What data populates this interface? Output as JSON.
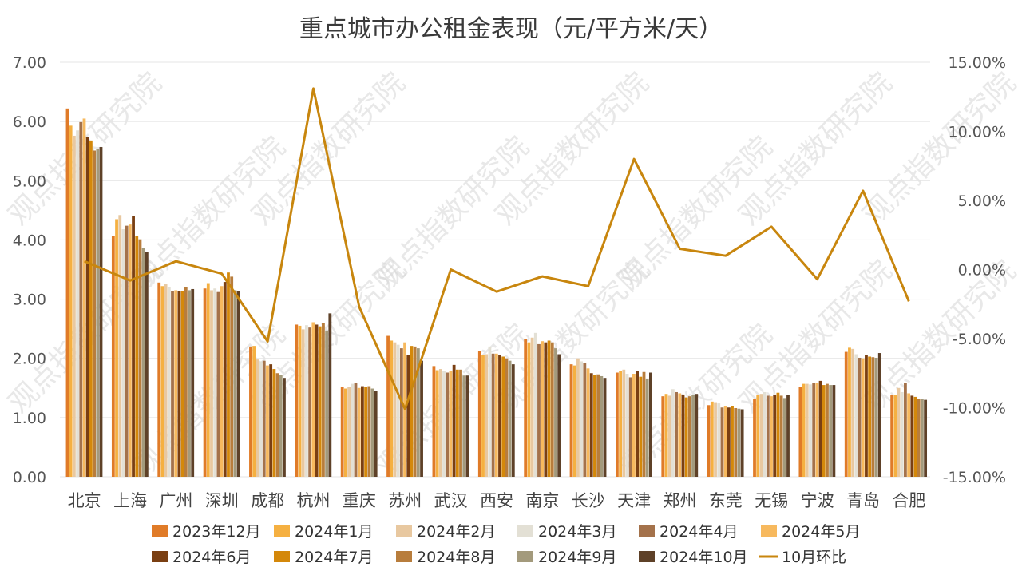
{
  "chart_data": {
    "type": "bar",
    "title": "重点城市办公租金表现（元/平方米/天）",
    "categories": [
      "北京",
      "上海",
      "广州",
      "深圳",
      "成都",
      "杭州",
      "重庆",
      "苏州",
      "武汉",
      "西安",
      "南京",
      "长沙",
      "天津",
      "郑州",
      "东莞",
      "无锡",
      "宁波",
      "青岛",
      "合肥"
    ],
    "y_left": {
      "ylim": [
        0,
        7
      ],
      "ticks": [
        "0.00",
        "1.00",
        "2.00",
        "3.00",
        "4.00",
        "5.00",
        "6.00",
        "7.00"
      ]
    },
    "y_right": {
      "ylim": [
        -15,
        15
      ],
      "ticks": [
        "-15.00%",
        "-10.00%",
        "-5.00%",
        "0.00%",
        "5.00%",
        "10.00%",
        "15.00%"
      ]
    },
    "legend_position": "bottom",
    "grid": true,
    "series": [
      {
        "name": "2023年12月",
        "color": "#e07b28",
        "values": [
          6.22,
          4.06,
          3.28,
          3.18,
          2.2,
          2.57,
          1.52,
          2.38,
          1.87,
          2.12,
          2.32,
          1.9,
          1.76,
          1.36,
          1.21,
          1.31,
          1.52,
          2.11,
          1.38
        ]
      },
      {
        "name": "2024年1月",
        "color": "#f5b041",
        "values": [
          5.93,
          4.35,
          3.22,
          3.27,
          2.21,
          2.55,
          1.49,
          2.3,
          1.8,
          2.05,
          2.27,
          1.88,
          1.79,
          1.4,
          1.27,
          1.38,
          1.57,
          2.18,
          1.38
        ]
      },
      {
        "name": "2024年2月",
        "color": "#e8c8a0",
        "values": [
          5.76,
          4.42,
          3.25,
          3.15,
          1.98,
          2.49,
          1.52,
          2.27,
          1.82,
          2.07,
          2.35,
          2.0,
          1.81,
          1.37,
          1.26,
          1.4,
          1.57,
          2.16,
          1.5
        ]
      },
      {
        "name": "2024年3月",
        "color": "#e3e0d5",
        "values": [
          5.85,
          4.18,
          3.2,
          3.18,
          1.95,
          2.56,
          1.57,
          2.23,
          1.79,
          2.2,
          2.43,
          1.95,
          1.74,
          1.48,
          1.24,
          1.43,
          1.56,
          2.07,
          1.43
        ]
      },
      {
        "name": "2024年4月",
        "color": "#a4724b",
        "values": [
          5.99,
          4.24,
          3.14,
          3.12,
          1.96,
          2.52,
          1.59,
          2.17,
          1.76,
          2.08,
          2.24,
          1.92,
          1.68,
          1.43,
          1.17,
          1.37,
          1.59,
          2.01,
          1.59
        ]
      },
      {
        "name": "2024年5月",
        "color": "#f7b95e",
        "values": [
          6.05,
          4.26,
          3.15,
          3.22,
          1.88,
          2.61,
          1.5,
          2.27,
          1.79,
          2.08,
          2.29,
          1.83,
          1.74,
          1.41,
          1.19,
          1.36,
          1.59,
          2.0,
          1.41
        ]
      },
      {
        "name": "2024年6月",
        "color": "#7a3f12",
        "values": [
          5.74,
          4.41,
          3.14,
          3.29,
          1.9,
          2.57,
          1.53,
          2.06,
          1.89,
          2.05,
          2.27,
          1.75,
          1.79,
          1.39,
          1.17,
          1.39,
          1.62,
          2.05,
          1.37
        ]
      },
      {
        "name": "2024年7月",
        "color": "#d4880a",
        "values": [
          5.68,
          4.07,
          3.14,
          3.45,
          1.82,
          2.54,
          1.52,
          2.21,
          1.81,
          2.03,
          2.3,
          1.72,
          1.69,
          1.34,
          1.2,
          1.42,
          1.55,
          2.03,
          1.35
        ]
      },
      {
        "name": "2024年8月",
        "color": "#b87d3c",
        "values": [
          5.51,
          4.01,
          3.2,
          3.38,
          1.75,
          2.6,
          1.53,
          2.2,
          1.81,
          2.0,
          2.27,
          1.73,
          1.77,
          1.36,
          1.16,
          1.37,
          1.57,
          2.02,
          1.32
        ]
      },
      {
        "name": "2024年9月",
        "color": "#a39a7c",
        "values": [
          5.53,
          3.87,
          3.15,
          3.15,
          1.72,
          2.47,
          1.49,
          2.17,
          1.71,
          1.96,
          2.17,
          1.7,
          1.66,
          1.39,
          1.15,
          1.33,
          1.55,
          2.01,
          1.32
        ]
      },
      {
        "name": "2024年10月",
        "color": "#5e4128",
        "values": [
          5.57,
          3.8,
          3.17,
          3.13,
          1.67,
          2.76,
          1.45,
          1.96,
          1.71,
          1.9,
          2.07,
          1.67,
          1.76,
          1.4,
          1.14,
          1.38,
          1.55,
          2.09,
          1.3
        ]
      }
    ],
    "line_series": {
      "name": "10月环比",
      "color": "#c8860e",
      "axis": "right",
      "values": [
        0.6,
        -0.8,
        0.6,
        -0.3,
        -5.2,
        13.1,
        -2.7,
        -10.1,
        0.0,
        -1.6,
        -0.5,
        -1.2,
        8.0,
        1.5,
        1.0,
        3.1,
        -0.7,
        5.7,
        -2.3
      ]
    },
    "watermark": "观点指数研究院"
  }
}
